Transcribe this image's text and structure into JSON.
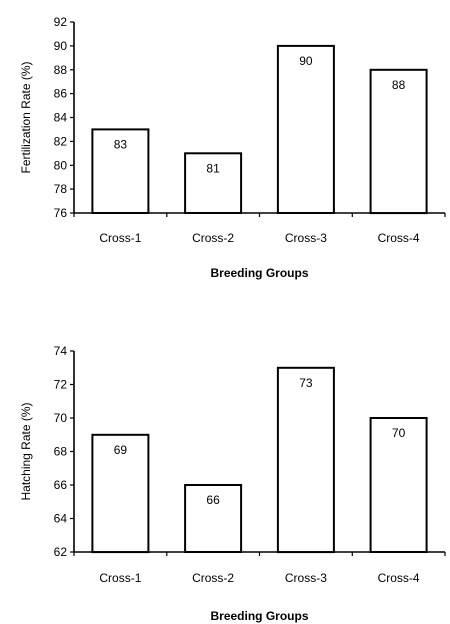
{
  "chart_data": [
    {
      "type": "bar",
      "categories": [
        "Cross-1",
        "Cross-2",
        "Cross-3",
        "Cross-4"
      ],
      "values": [
        83,
        81,
        90,
        88
      ],
      "data_labels": [
        "83",
        "81",
        "90",
        "88"
      ],
      "title": "",
      "xlabel": "Breeding Groups",
      "ylabel": "Fertilization Rate (%)",
      "ylim": [
        76,
        92
      ],
      "yticks": [
        "76",
        "78",
        "80",
        "82",
        "84",
        "86",
        "88",
        "90",
        "92"
      ],
      "grid": false,
      "legend": "none",
      "bar_fill": "#ffffff",
      "bar_stroke": "#000000"
    },
    {
      "type": "bar",
      "categories": [
        "Cross-1",
        "Cross-2",
        "Cross-3",
        "Cross-4"
      ],
      "values": [
        69,
        66,
        73,
        70
      ],
      "data_labels": [
        "69",
        "66",
        "73",
        "70"
      ],
      "title": "",
      "xlabel": "Breeding Groups",
      "ylabel": "Hatching Rate (%)",
      "ylim": [
        62,
        74
      ],
      "yticks": [
        "62",
        "64",
        "66",
        "68",
        "70",
        "72",
        "74"
      ],
      "grid": false,
      "legend": "none",
      "bar_fill": "#ffffff",
      "bar_stroke": "#000000"
    }
  ]
}
